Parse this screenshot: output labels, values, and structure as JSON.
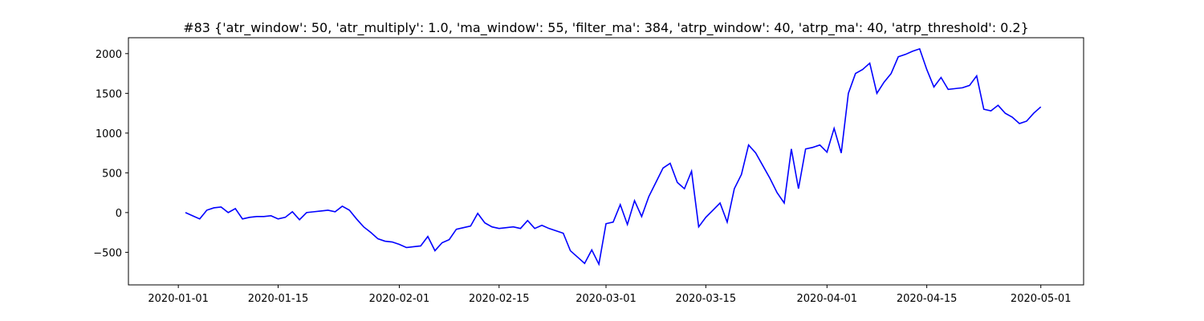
{
  "chart_data": {
    "type": "line",
    "title": "#83 {'atr_window': 50, 'atr_multiply': 1.0, 'ma_window': 55, 'filter_ma': 384, 'atrp_window': 40, 'atrp_ma': 40, 'atrp_threshold': 0.2}",
    "x": [
      "2020-01-02",
      "2020-01-03",
      "2020-01-04",
      "2020-01-05",
      "2020-01-06",
      "2020-01-07",
      "2020-01-08",
      "2020-01-09",
      "2020-01-10",
      "2020-01-11",
      "2020-01-12",
      "2020-01-13",
      "2020-01-14",
      "2020-01-15",
      "2020-01-16",
      "2020-01-17",
      "2020-01-18",
      "2020-01-19",
      "2020-01-20",
      "2020-01-21",
      "2020-01-22",
      "2020-01-23",
      "2020-01-24",
      "2020-01-25",
      "2020-01-26",
      "2020-01-27",
      "2020-01-28",
      "2020-01-29",
      "2020-01-30",
      "2020-01-31",
      "2020-02-01",
      "2020-02-02",
      "2020-02-03",
      "2020-02-04",
      "2020-02-05",
      "2020-02-06",
      "2020-02-07",
      "2020-02-08",
      "2020-02-09",
      "2020-02-10",
      "2020-02-11",
      "2020-02-12",
      "2020-02-13",
      "2020-02-14",
      "2020-02-15",
      "2020-02-16",
      "2020-02-17",
      "2020-02-18",
      "2020-02-19",
      "2020-02-20",
      "2020-02-21",
      "2020-02-22",
      "2020-02-23",
      "2020-02-24",
      "2020-02-25",
      "2020-02-26",
      "2020-02-27",
      "2020-02-28",
      "2020-02-29",
      "2020-03-01",
      "2020-03-02",
      "2020-03-03",
      "2020-03-04",
      "2020-03-05",
      "2020-03-06",
      "2020-03-07",
      "2020-03-08",
      "2020-03-09",
      "2020-03-10",
      "2020-03-11",
      "2020-03-12",
      "2020-03-13",
      "2020-03-14",
      "2020-03-15",
      "2020-03-16",
      "2020-03-17",
      "2020-03-18",
      "2020-03-19",
      "2020-03-20",
      "2020-03-21",
      "2020-03-22",
      "2020-03-23",
      "2020-03-24",
      "2020-03-25",
      "2020-03-26",
      "2020-03-27",
      "2020-03-28",
      "2020-03-29",
      "2020-03-30",
      "2020-03-31",
      "2020-04-01",
      "2020-04-02",
      "2020-04-03",
      "2020-04-04",
      "2020-04-05",
      "2020-04-06",
      "2020-04-07",
      "2020-04-08",
      "2020-04-09",
      "2020-04-10",
      "2020-04-11",
      "2020-04-12",
      "2020-04-13",
      "2020-04-14",
      "2020-04-15",
      "2020-04-16",
      "2020-04-17",
      "2020-04-18",
      "2020-04-19",
      "2020-04-20",
      "2020-04-21",
      "2020-04-22",
      "2020-04-23",
      "2020-04-24",
      "2020-04-25",
      "2020-04-26",
      "2020-04-27",
      "2020-04-28",
      "2020-04-29",
      "2020-04-30",
      "2020-05-01"
    ],
    "series": [
      {
        "color": "#0000ff",
        "values": [
          0,
          -40,
          -80,
          30,
          60,
          70,
          0,
          50,
          -80,
          -60,
          -50,
          -50,
          -40,
          -80,
          -60,
          10,
          -90,
          0,
          10,
          20,
          30,
          10,
          80,
          30,
          -80,
          -180,
          -250,
          -330,
          -360,
          -370,
          -400,
          -440,
          -430,
          -420,
          -300,
          -480,
          -380,
          -340,
          -210,
          -190,
          -170,
          -10,
          -130,
          -180,
          -200,
          -190,
          -180,
          -200,
          -100,
          -200,
          -160,
          -200,
          -230,
          -260,
          -480,
          -560,
          -640,
          -470,
          -650,
          -140,
          -120,
          100,
          -150,
          150,
          -50,
          200,
          380,
          560,
          620,
          380,
          300,
          520,
          -180,
          -60,
          30,
          120,
          -120,
          300,
          480,
          850,
          750,
          590,
          430,
          250,
          120,
          800,
          300,
          800,
          820,
          850,
          760,
          1060,
          750,
          1500,
          1750,
          1800,
          1880,
          1500,
          1640,
          1750,
          1960,
          1990,
          2030,
          2060,
          1800,
          1580,
          1700,
          1550,
          1560,
          1570,
          1600,
          1720,
          1300,
          1280,
          1350,
          1250,
          1200,
          1120,
          1150,
          1250,
          1330
        ]
      }
    ],
    "xlim": [
      "2019-12-25",
      "2020-05-07"
    ],
    "xticks": [
      "2020-01-01",
      "2020-01-15",
      "2020-02-01",
      "2020-02-15",
      "2020-03-01",
      "2020-03-15",
      "2020-04-01",
      "2020-04-15",
      "2020-05-01"
    ],
    "ylim": [
      -910,
      2200
    ],
    "yticks": [
      {
        "value": -500,
        "label": "−500"
      },
      0,
      500,
      1000,
      1500,
      2000
    ]
  }
}
